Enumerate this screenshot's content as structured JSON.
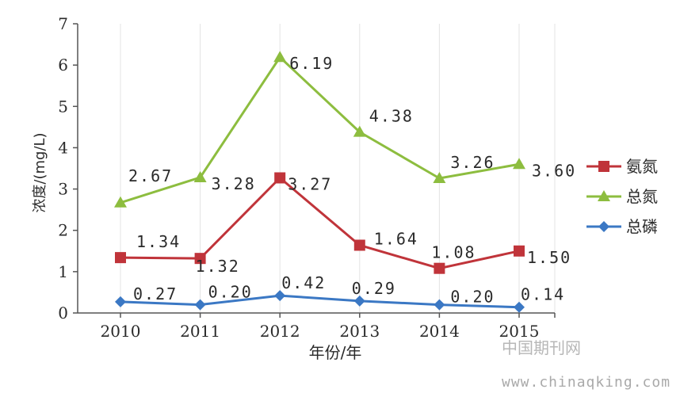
{
  "chart_data": {
    "type": "line",
    "xlabel": "年份/年",
    "ylabel": "浓度/(mg/L)",
    "categories": [
      "2010",
      "2011",
      "2012",
      "2013",
      "2014",
      "2015"
    ],
    "ylim": [
      0,
      7
    ],
    "yticks": [
      "0",
      "1",
      "2",
      "3",
      "4",
      "5",
      "6",
      "7"
    ],
    "grid": "vertical",
    "legend_position": "right",
    "series": [
      {
        "name": "氨氮",
        "color": "#c0343a",
        "marker": "square",
        "values": [
          1.34,
          1.32,
          3.27,
          1.64,
          1.08,
          1.5
        ],
        "labels": [
          "1.34",
          "1.32",
          "3.27",
          "1.64",
          "1.08",
          "1.50"
        ]
      },
      {
        "name": "总氮",
        "color": "#8dbd3f",
        "marker": "triangle",
        "values": [
          2.67,
          3.28,
          6.19,
          4.38,
          3.26,
          3.6
        ],
        "labels": [
          "2.67",
          "3.28",
          "6.19",
          "4.38",
          "3.26",
          "3.60"
        ]
      },
      {
        "name": "总磷",
        "color": "#3b78c4",
        "marker": "diamond",
        "values": [
          0.27,
          0.2,
          0.42,
          0.29,
          0.2,
          0.14
        ],
        "labels": [
          "0.27",
          "0.20",
          "0.42",
          "0.29",
          "0.20",
          "0.14"
        ]
      }
    ]
  },
  "watermark": {
    "name": "中国期刊网",
    "url": "www.chinaqking.com"
  }
}
